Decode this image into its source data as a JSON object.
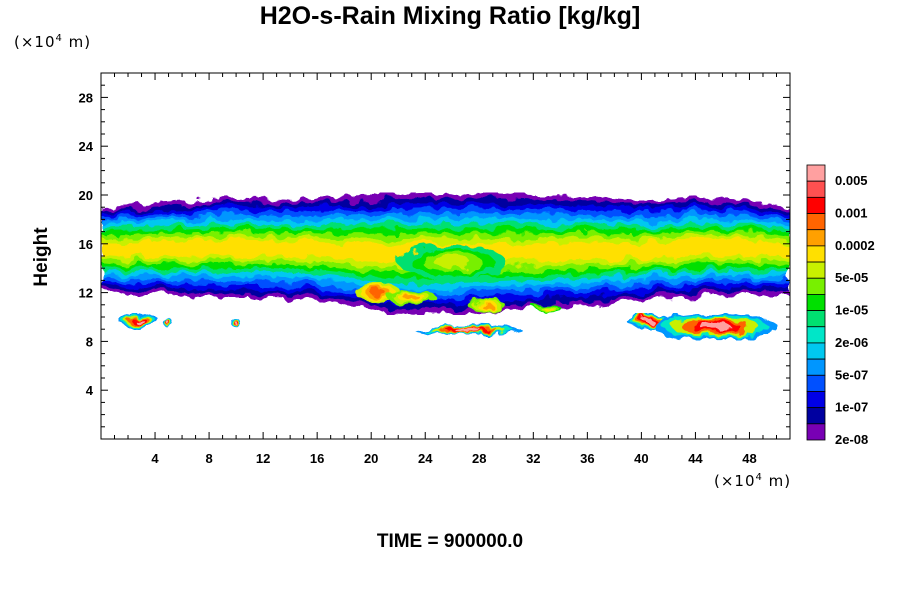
{
  "chart_data": {
    "type": "heatmap",
    "title": "H2O-s-Rain Mixing Ratio [kg/kg]",
    "xlabel": "",
    "ylabel": "Height",
    "x_unit_prefix": "(×10",
    "x_unit_exp": "4",
    "x_unit_suffix": " m)",
    "y_unit_prefix": "(×10",
    "y_unit_exp": "4",
    "y_unit_suffix": " m)",
    "xlim": [
      0,
      51
    ],
    "ylim": [
      0,
      30
    ],
    "x_ticks": [
      4,
      8,
      12,
      16,
      20,
      24,
      28,
      32,
      36,
      40,
      44,
      48
    ],
    "y_ticks": [
      4,
      8,
      12,
      16,
      20,
      24,
      28
    ],
    "legend": {
      "labels": [
        "0.005",
        "0.001",
        "0.0002",
        "5e-05",
        "1e-05",
        "2e-06",
        "5e-07",
        "1e-07",
        "2e-08"
      ],
      "colors": [
        "#ffa0a0",
        "#ff5050",
        "#ff0000",
        "#ff6400",
        "#ffa000",
        "#ffe000",
        "#c8f000",
        "#78f000",
        "#00e000",
        "#00e070",
        "#00e6c8",
        "#00c8f0",
        "#0096ff",
        "#0050ff",
        "#0000e6",
        "#0000a0",
        "#7800b4"
      ]
    },
    "field": {
      "cloud_top": [
        [
          0,
          19.0
        ],
        [
          3,
          19.3
        ],
        [
          6,
          19.5
        ],
        [
          10,
          19.8
        ],
        [
          14,
          19.6
        ],
        [
          20,
          20.0
        ],
        [
          26,
          20.2
        ],
        [
          32,
          20.0
        ],
        [
          36,
          19.9
        ],
        [
          40,
          19.5
        ],
        [
          44,
          19.8
        ],
        [
          48,
          19.6
        ],
        [
          51,
          19.0
        ]
      ],
      "cloud_base": [
        [
          0,
          12.2
        ],
        [
          2,
          11.8
        ],
        [
          4,
          11.8
        ],
        [
          8,
          11.6
        ],
        [
          12,
          11.6
        ],
        [
          16,
          11.4
        ],
        [
          19,
          10.8
        ],
        [
          21,
          10.3
        ],
        [
          24,
          10.2
        ],
        [
          28,
          10.4
        ],
        [
          31,
          10.6
        ],
        [
          34,
          10.8
        ],
        [
          37,
          11.0
        ],
        [
          40,
          11.4
        ],
        [
          44,
          11.6
        ],
        [
          48,
          11.8
        ],
        [
          51,
          11.8
        ]
      ],
      "blobs": [
        {
          "x": 26,
          "y": 14.5,
          "rx": 4.0,
          "ry": 1.4,
          "level": 5
        },
        {
          "x": 20.5,
          "y": 12.0,
          "rx": 1.7,
          "ry": 0.8,
          "level": 2
        },
        {
          "x": 23.0,
          "y": 11.6,
          "rx": 1.8,
          "ry": 0.6,
          "level": 3
        },
        {
          "x": 28.5,
          "y": 11.0,
          "rx": 1.4,
          "ry": 0.5,
          "level": 3
        },
        {
          "x": 33.0,
          "y": 10.8,
          "rx": 1.0,
          "ry": 0.3,
          "level": 4
        }
      ],
      "rain_patches": [
        {
          "x": 2.8,
          "y": 9.7,
          "rx": 1.5,
          "ry": 0.6
        },
        {
          "x": 4.9,
          "y": 9.6,
          "rx": 0.4,
          "ry": 0.3
        },
        {
          "x": 10.0,
          "y": 9.5,
          "rx": 0.4,
          "ry": 0.3
        },
        {
          "x": 27.2,
          "y": 8.9,
          "rx": 4.0,
          "ry": 0.35
        },
        {
          "x": 40.5,
          "y": 9.7,
          "rx": 1.6,
          "ry": 0.6
        },
        {
          "x": 45.5,
          "y": 9.2,
          "rx": 4.6,
          "ry": 1.1
        }
      ]
    }
  },
  "time_label": "TIME = 900000.0"
}
